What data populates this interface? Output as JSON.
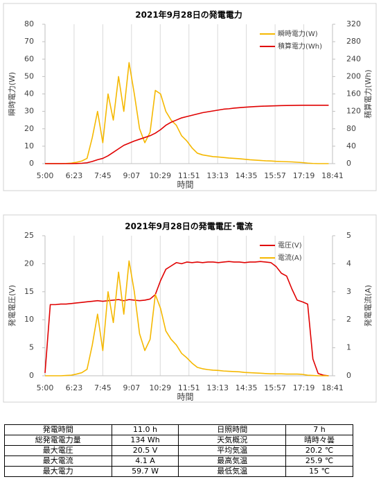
{
  "chart_data": [
    {
      "type": "line",
      "title": "2021年9月28日の発電電力",
      "xlabel": "時間",
      "ylabel": "瞬時電力(W)",
      "y2label": "積算電力(Wh)",
      "x": [
        "5:00",
        "5:15",
        "5:30",
        "5:45",
        "6:00",
        "6:15",
        "6:30",
        "6:45",
        "7:00",
        "7:15",
        "7:30",
        "7:45",
        "8:00",
        "8:15",
        "8:30",
        "8:45",
        "9:00",
        "9:15",
        "9:30",
        "9:45",
        "10:00",
        "10:15",
        "10:30",
        "10:45",
        "11:00",
        "11:15",
        "11:30",
        "11:45",
        "12:00",
        "12:15",
        "12:30",
        "12:45",
        "13:00",
        "13:15",
        "13:30",
        "13:45",
        "14:00",
        "14:15",
        "14:30",
        "14:45",
        "15:00",
        "15:15",
        "15:30",
        "15:45",
        "16:00",
        "16:15",
        "16:30",
        "16:45",
        "17:00",
        "17:15",
        "17:30",
        "17:45",
        "18:00",
        "18:15",
        "18:30"
      ],
      "xlim": [
        "5:00",
        "18:41"
      ],
      "xticks": [
        "5:00",
        "6:23",
        "7:45",
        "9:07",
        "10:29",
        "11:51",
        "13:13",
        "14:35",
        "15:57",
        "17:19",
        "18:41"
      ],
      "ylim": [
        0,
        80
      ],
      "yticks": [
        0,
        10,
        20,
        30,
        40,
        50,
        60,
        70,
        80
      ],
      "y2lim": [
        0,
        320
      ],
      "y2ticks": [
        0,
        40,
        80,
        120,
        160,
        200,
        240,
        280,
        320
      ],
      "grid": "x",
      "legend": "upper right",
      "series": [
        {
          "name": "瞬時電力(W)",
          "color": "#f5b800",
          "axis": "y",
          "values": [
            0,
            0,
            0,
            0,
            0.1,
            0.3,
            0.8,
            1.5,
            3,
            15,
            30,
            12,
            40,
            25,
            50,
            30,
            58,
            40,
            20,
            12,
            18,
            42,
            40,
            30,
            25,
            22,
            16,
            13,
            9,
            6,
            5,
            4.5,
            4,
            3.8,
            3.5,
            3.2,
            3,
            2.8,
            2.5,
            2.2,
            2,
            1.8,
            1.6,
            1.5,
            1.3,
            1.2,
            1.1,
            1,
            0.8,
            0.6,
            0.3,
            0.1,
            0,
            0,
            0
          ]
        },
        {
          "name": "積算電力(Wh)",
          "color": "#e00000",
          "axis": "y2",
          "values": [
            0,
            0,
            0,
            0,
            0,
            0,
            0.3,
            0.8,
            2,
            5,
            9,
            12,
            18,
            26,
            34,
            42,
            47,
            52,
            56,
            60,
            64,
            70,
            78,
            88,
            95,
            100,
            105,
            108,
            111,
            114,
            117,
            119,
            121,
            123,
            125,
            126,
            127.5,
            128.5,
            129.5,
            130.3,
            131,
            131.6,
            132.1,
            132.5,
            132.9,
            133.2,
            133.5,
            133.7,
            133.9,
            134,
            134,
            134,
            134,
            134,
            134
          ]
        }
      ]
    },
    {
      "type": "line",
      "title": "2021年9月28日の発電電圧･電流",
      "xlabel": "時間",
      "ylabel": "発電電圧(V)",
      "y2label": "発電電流(A)",
      "x": [
        "5:00",
        "5:15",
        "5:30",
        "5:45",
        "6:00",
        "6:15",
        "6:30",
        "6:45",
        "7:00",
        "7:15",
        "7:30",
        "7:45",
        "8:00",
        "8:15",
        "8:30",
        "8:45",
        "9:00",
        "9:15",
        "9:30",
        "9:45",
        "10:00",
        "10:15",
        "10:30",
        "10:45",
        "11:00",
        "11:15",
        "11:30",
        "11:45",
        "12:00",
        "12:15",
        "12:30",
        "12:45",
        "13:00",
        "13:15",
        "13:30",
        "13:45",
        "14:00",
        "14:15",
        "14:30",
        "14:45",
        "15:00",
        "15:15",
        "15:30",
        "15:45",
        "16:00",
        "16:15",
        "16:30",
        "16:45",
        "17:00",
        "17:15",
        "17:30",
        "17:45",
        "18:00",
        "18:15",
        "18:30"
      ],
      "xlim": [
        "5:00",
        "18:41"
      ],
      "xticks": [
        "5:00",
        "6:23",
        "7:45",
        "9:07",
        "10:29",
        "11:51",
        "13:13",
        "14:35",
        "15:57",
        "17:19",
        "18:41"
      ],
      "ylim": [
        0,
        25
      ],
      "yticks": [
        0,
        5,
        10,
        15,
        20,
        25
      ],
      "y2lim": [
        0,
        5
      ],
      "y2ticks": [
        0,
        1,
        2,
        3,
        4,
        5
      ],
      "grid": "x",
      "legend": "upper right",
      "series": [
        {
          "name": "電圧(V)",
          "color": "#e00000",
          "axis": "y",
          "values": [
            0.5,
            12.7,
            12.7,
            12.8,
            12.8,
            12.9,
            13.0,
            13.1,
            13.2,
            13.3,
            13.4,
            13.3,
            13.4,
            13.5,
            13.6,
            13.4,
            13.6,
            13.5,
            13.4,
            13.5,
            13.7,
            14.5,
            17.0,
            19.0,
            19.6,
            20.2,
            20.0,
            20.3,
            20.2,
            20.3,
            20.2,
            20.3,
            20.3,
            20.2,
            20.3,
            20.4,
            20.3,
            20.3,
            20.2,
            20.3,
            20.3,
            20.4,
            20.3,
            20.2,
            19.5,
            18.3,
            17.8,
            15.5,
            13.5,
            13.2,
            12.8,
            3.0,
            0.4,
            0.1,
            0
          ]
        },
        {
          "name": "電流(A)",
          "color": "#f5b800",
          "axis": "y2",
          "values": [
            0,
            0,
            0,
            0,
            0.01,
            0.02,
            0.06,
            0.11,
            0.23,
            1.1,
            2.2,
            0.9,
            3.0,
            1.9,
            3.7,
            2.2,
            4.1,
            3.0,
            1.5,
            0.9,
            1.3,
            2.9,
            2.4,
            1.6,
            1.3,
            1.1,
            0.8,
            0.64,
            0.45,
            0.3,
            0.25,
            0.22,
            0.2,
            0.19,
            0.17,
            0.16,
            0.15,
            0.14,
            0.12,
            0.11,
            0.1,
            0.09,
            0.08,
            0.07,
            0.07,
            0.07,
            0.06,
            0.06,
            0.06,
            0.05,
            0.02,
            0.01,
            0,
            0,
            0
          ]
        }
      ]
    }
  ],
  "table": {
    "rows": [
      [
        "発電時間",
        "11.0 h",
        "日照時間",
        "7 h"
      ],
      [
        "総発電電力量",
        "134 Wh",
        "天気概況",
        "晴時々曇"
      ],
      [
        "最大電圧",
        "20.5 V",
        "平均気温",
        "20.2 ℃"
      ],
      [
        "最大電流",
        "4.1 A",
        "最高気温",
        "25.9 ℃"
      ],
      [
        "最大電力",
        "59.7 W",
        "最低気温",
        "15 ℃"
      ]
    ]
  }
}
